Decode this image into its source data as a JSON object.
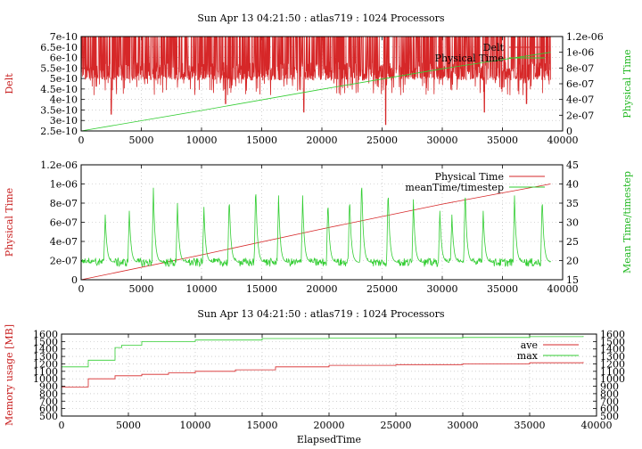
{
  "chart_data": [
    {
      "type": "line",
      "title": "Sun Apr 13 04:21:50 : atlas719 : 1024 Processors",
      "xlabel": "",
      "ylabel": "Delt",
      "y2label": "Physical Time",
      "xlim": [
        0,
        40000
      ],
      "ylim": [
        2.5e-10,
        7e-10
      ],
      "y2lim": [
        0,
        1.2e-06
      ],
      "xticks": [
        "0",
        "5000",
        "10000",
        "15000",
        "20000",
        "25000",
        "30000",
        "35000",
        "40000"
      ],
      "yticks": [
        "2.5e-10",
        "3e-10",
        "3.5e-10",
        "4e-10",
        "4.5e-10",
        "5e-10",
        "5.5e-10",
        "6e-10",
        "6.5e-10",
        "7e-10"
      ],
      "y2ticks": [
        "0",
        "2e-07",
        "4e-07",
        "6e-07",
        "8e-07",
        "1e-06",
        "1.2e-06"
      ],
      "grid": true,
      "legend": "top-right",
      "series": [
        {
          "name": "Delt",
          "axis": "y",
          "color": "#d62728",
          "kind": "noisy",
          "x_end": 39000,
          "base": 7e-10,
          "min": 3e-10,
          "dips": [
            [
              2500,
              3.3e-10
            ],
            [
              12000,
              3.8e-10
            ],
            [
              18500,
              3.4e-10
            ],
            [
              25300,
              2.8e-10
            ],
            [
              33500,
              3.4e-10
            ],
            [
              37000,
              3.8e-10
            ]
          ]
        },
        {
          "name": "Physical Time",
          "axis": "y2",
          "color": "#32cd32",
          "x": [
            0,
            10000,
            20000,
            30000,
            39000
          ],
          "y": [
            0,
            2.6e-07,
            5.3e-07,
            7.9e-07,
            1e-06
          ]
        }
      ]
    },
    {
      "type": "line",
      "title": "",
      "xlabel": "",
      "ylabel": "Physical Time",
      "y2label": "Mean Time/timestep",
      "xlim": [
        0,
        40000
      ],
      "ylim": [
        0,
        1.2e-06
      ],
      "y2lim": [
        15,
        45
      ],
      "xticks": [
        "0",
        "5000",
        "10000",
        "15000",
        "20000",
        "25000",
        "30000",
        "35000",
        "40000"
      ],
      "yticks": [
        "0",
        "2e-07",
        "4e-07",
        "6e-07",
        "8e-07",
        "1e-06",
        "1.2e-06"
      ],
      "y2ticks": [
        "15",
        "20",
        "25",
        "30",
        "35",
        "40",
        "45"
      ],
      "grid": true,
      "legend": "top-right",
      "series": [
        {
          "name": "Physical Time",
          "axis": "y",
          "color": "#d62728",
          "x": [
            0,
            10000,
            20000,
            30000,
            39000
          ],
          "y": [
            0,
            2.6e-07,
            5.3e-07,
            7.9e-07,
            1e-06
          ]
        },
        {
          "name": "meanTime/timestep",
          "axis": "y2",
          "color": "#32cd32",
          "kind": "spiky",
          "x_end": 39000,
          "base": 19.5,
          "peaks": [
            [
              2000,
              32
            ],
            [
              4000,
              33
            ],
            [
              6000,
              39
            ],
            [
              8000,
              35
            ],
            [
              10200,
              34
            ],
            [
              12300,
              37
            ],
            [
              14500,
              40
            ],
            [
              16400,
              37
            ],
            [
              18400,
              37
            ],
            [
              20500,
              36
            ],
            [
              22300,
              37
            ],
            [
              23300,
              42
            ],
            [
              25500,
              39
            ],
            [
              27600,
              36
            ],
            [
              29800,
              33
            ],
            [
              30800,
              32
            ],
            [
              31900,
              39
            ],
            [
              33400,
              33
            ],
            [
              36000,
              37
            ],
            [
              38300,
              37
            ]
          ]
        }
      ]
    },
    {
      "type": "line",
      "title": "Sun Apr 13 04:21:50 : atlas719 : 1024 Processors",
      "xlabel": "ElapsedTime",
      "ylabel": "Memory usage [MB]",
      "y2label": "",
      "xlim": [
        0,
        40000
      ],
      "ylim": [
        500,
        1600
      ],
      "y2lim": [
        500,
        1600
      ],
      "xticks": [
        "0",
        "5000",
        "10000",
        "15000",
        "20000",
        "25000",
        "30000",
        "35000",
        "40000"
      ],
      "yticks": [
        "500",
        "600",
        "700",
        "800",
        "900",
        "1000",
        "1100",
        "1200",
        "1300",
        "1400",
        "1500",
        "1600"
      ],
      "y2ticks": [
        "500",
        "600",
        "700",
        "800",
        "900",
        "1000",
        "1100",
        "1200",
        "1300",
        "1400",
        "1500",
        "1600"
      ],
      "grid": true,
      "legend": "top-right",
      "series": [
        {
          "name": "ave",
          "axis": "y",
          "color": "#d62728",
          "kind": "step",
          "x": [
            0,
            1200,
            2000,
            4000,
            6000,
            8000,
            10000,
            13000,
            16000,
            20000,
            25000,
            30000,
            35000,
            39000
          ],
          "y": [
            890,
            890,
            1000,
            1040,
            1060,
            1080,
            1100,
            1120,
            1160,
            1180,
            1190,
            1200,
            1215,
            1225
          ]
        },
        {
          "name": "max",
          "axis": "y",
          "color": "#32cd32",
          "kind": "step",
          "x": [
            0,
            1200,
            2000,
            4000,
            4500,
            6000,
            10000,
            15000,
            20000,
            25000,
            30000,
            35000,
            39000
          ],
          "y": [
            1160,
            1160,
            1250,
            1420,
            1450,
            1500,
            1520,
            1540,
            1545,
            1550,
            1555,
            1565,
            1575
          ]
        }
      ]
    }
  ]
}
